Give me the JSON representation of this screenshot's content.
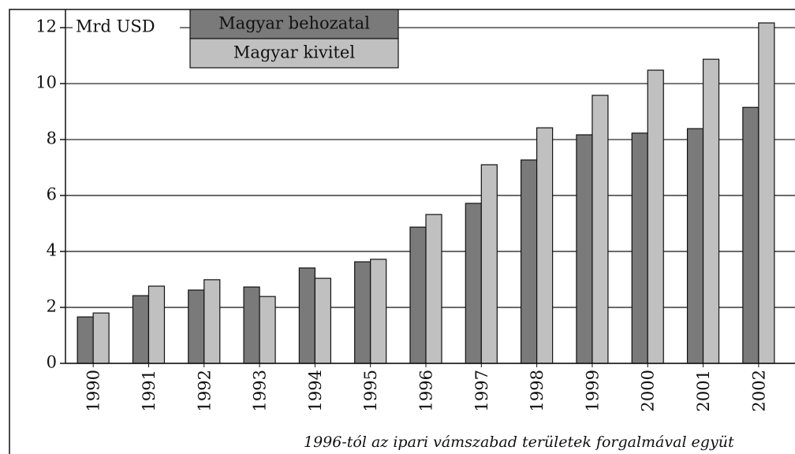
{
  "chart_data": {
    "type": "bar",
    "y_label": "Mrd USD",
    "note": "1996-tól az ipari vámszabad területek forgalmával együt",
    "categories": [
      "1990",
      "1991",
      "1992",
      "1993",
      "1994",
      "1995",
      "1996",
      "1997",
      "1998",
      "1999",
      "2000",
      "2001",
      "2002"
    ],
    "series": [
      {
        "name": "Magyar behozatal",
        "color": "#7a7a7a",
        "values": [
          1.66,
          2.42,
          2.62,
          2.73,
          3.41,
          3.63,
          4.87,
          5.72,
          7.27,
          8.17,
          8.23,
          8.39,
          9.15
        ]
      },
      {
        "name": "Magyar kivitel",
        "color": "#c0c0c0",
        "values": [
          1.8,
          2.76,
          2.99,
          2.39,
          3.04,
          3.72,
          5.32,
          7.1,
          8.42,
          9.58,
          10.48,
          10.87,
          12.17
        ]
      }
    ],
    "ylim": [
      0,
      12.65
    ],
    "yticks": [
      0,
      2,
      4,
      6,
      8,
      10,
      12
    ],
    "grid": true
  }
}
